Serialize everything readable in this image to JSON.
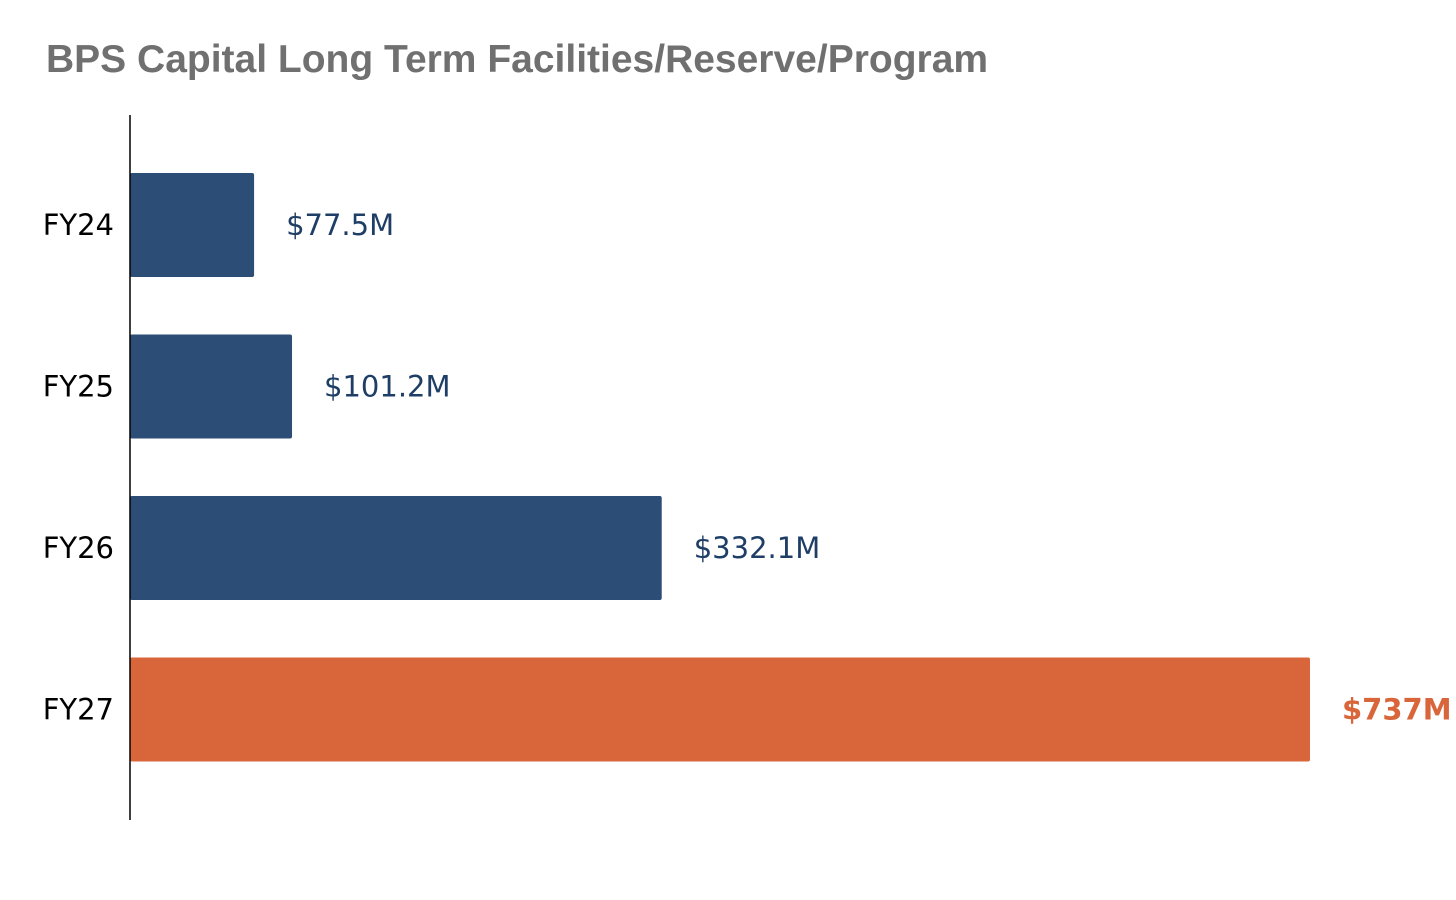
{
  "chart_data": {
    "type": "bar",
    "orientation": "horizontal",
    "title": "BPS Capital Long Term Facilities/Reserve/Program",
    "xlabel": "",
    "ylabel": "",
    "grid": false,
    "xlim": [
      0,
      737
    ],
    "categories": [
      "FY24",
      "FY25",
      "FY26",
      "FY27"
    ],
    "values": [
      77.5,
      101.2,
      332.1,
      737
    ],
    "data_labels": [
      "$77.5M",
      "$101.2M",
      "$332.1M",
      "$737M"
    ],
    "unit": "$M",
    "highlight_index": 3,
    "colors": {
      "bar": "#2c4d75",
      "highlight": "#d9663b",
      "label": "#1f3e66",
      "highlight_label": "#d9663b",
      "axis": "#000000",
      "tick_label": "#000000",
      "title": "#707070"
    }
  }
}
